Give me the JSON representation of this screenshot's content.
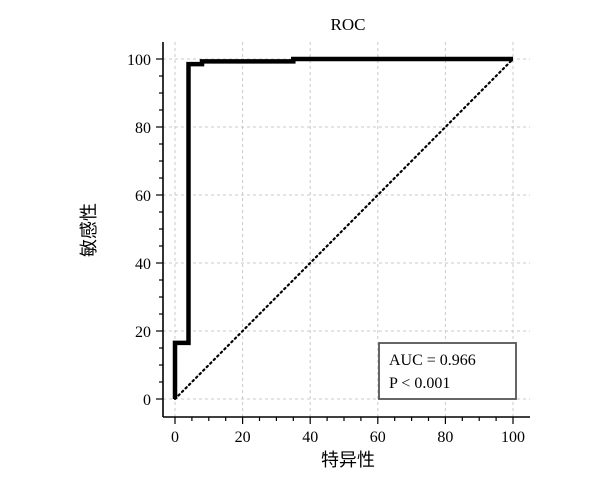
{
  "chart_data": {
    "type": "line",
    "title": "ROC",
    "xlabel": "特异性",
    "ylabel": "敏感性",
    "xlim": [
      0,
      100
    ],
    "ylim": [
      0,
      100
    ],
    "xticks": [
      0,
      20,
      40,
      60,
      80,
      100
    ],
    "yticks": [
      0,
      20,
      40,
      60,
      80,
      100
    ],
    "minor_tick_step": 5,
    "grid": true,
    "series": [
      {
        "style": "solid-thick",
        "color": "#000000",
        "x": [
          0,
          0,
          4,
          4,
          8,
          8,
          35,
          35,
          100
        ],
        "y": [
          0,
          16.5,
          16.5,
          98.5,
          98.5,
          99.3,
          99.3,
          100,
          100
        ]
      },
      {
        "style": "dotted",
        "color": "#000000",
        "x": [
          0,
          100
        ],
        "y": [
          0,
          100
        ]
      }
    ],
    "annotation": {
      "lines": [
        "AUC = 0.966",
        "P < 0.001"
      ],
      "position": "bottom-right"
    }
  }
}
